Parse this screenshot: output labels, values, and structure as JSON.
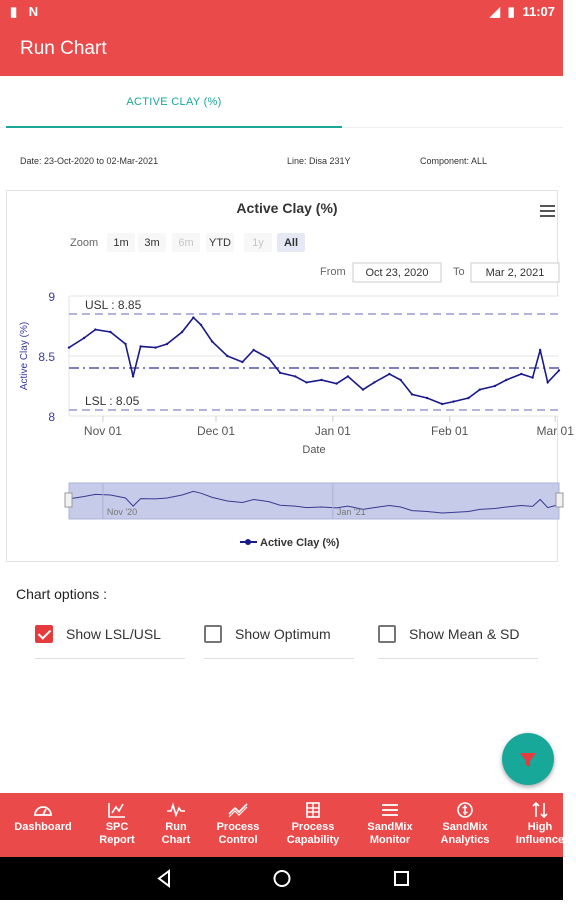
{
  "status": {
    "time": "11:07",
    "left_icons": [
      "sd-card-icon",
      "n-icon"
    ],
    "right_icons": [
      "signal-icon",
      "battery-icon"
    ]
  },
  "app": {
    "title": "Run Chart"
  },
  "tabs": [
    {
      "label": "ACTIVE CLAY (%)",
      "selected": true
    }
  ],
  "info": {
    "date": "Date: 23-Oct-2020 to 02-Mar-2021",
    "line": "Line: Disa 231Y",
    "component": "Component: ALL"
  },
  "chart": {
    "menu_icon": "hamburger-menu-icon",
    "zoom_label": "Zoom",
    "zoom_buttons": [
      {
        "label": "1m",
        "enabled": true
      },
      {
        "label": "3m",
        "enabled": true
      },
      {
        "label": "6m",
        "enabled": false
      },
      {
        "label": "YTD",
        "enabled": true
      },
      {
        "label": "1y",
        "enabled": false
      },
      {
        "label": "All",
        "enabled": true,
        "active": true
      }
    ],
    "from_label": "From",
    "from_value": "Oct 23, 2020",
    "to_label": "To",
    "to_value": "Mar 2, 2021",
    "navigator_labels": [
      "Nov '20",
      "Jan '21"
    ],
    "colors": {
      "series": "#1a1a8c",
      "limits": "#9a9ad6",
      "navigator": "#c5cbe8"
    }
  },
  "chart_data": {
    "type": "line",
    "title": "Active Clay (%)",
    "xlabel": "Date",
    "ylabel": "Active Clay (%)",
    "ylim": [
      8,
      9
    ],
    "yticks": [
      "8",
      "8.5",
      "9"
    ],
    "xticks": [
      "Nov 01",
      "Dec 01",
      "Jan 01",
      "Feb 01",
      "Mar 01"
    ],
    "x_range": [
      "2020-10-23",
      "2021-03-02"
    ],
    "series": [
      {
        "name": "Active Clay (%)",
        "x": [
          "2020-10-23",
          "2020-10-27",
          "2020-10-30",
          "2020-11-03",
          "2020-11-07",
          "2020-11-09",
          "2020-11-11",
          "2020-11-15",
          "2020-11-18",
          "2020-11-22",
          "2020-11-25",
          "2020-11-27",
          "2020-11-30",
          "2020-12-04",
          "2020-12-08",
          "2020-12-11",
          "2020-12-15",
          "2020-12-18",
          "2020-12-22",
          "2020-12-25",
          "2020-12-29",
          "2021-01-02",
          "2021-01-05",
          "2021-01-09",
          "2021-01-12",
          "2021-01-16",
          "2021-01-19",
          "2021-01-22",
          "2021-01-26",
          "2021-01-30",
          "2021-02-02",
          "2021-02-06",
          "2021-02-09",
          "2021-02-13",
          "2021-02-16",
          "2021-02-20",
          "2021-02-23",
          "2021-02-25",
          "2021-02-27",
          "2021-03-02"
        ],
        "values": [
          8.57,
          8.65,
          8.72,
          8.7,
          8.6,
          8.33,
          8.58,
          8.57,
          8.6,
          8.7,
          8.82,
          8.76,
          8.62,
          8.5,
          8.45,
          8.55,
          8.48,
          8.36,
          8.33,
          8.28,
          8.3,
          8.27,
          8.33,
          8.22,
          8.28,
          8.35,
          8.3,
          8.18,
          8.15,
          8.1,
          8.12,
          8.15,
          8.22,
          8.25,
          8.3,
          8.35,
          8.32,
          8.55,
          8.28,
          8.38
        ]
      }
    ],
    "lines": [
      {
        "label": "USL : 8.85",
        "value": 8.85
      },
      {
        "label": "LSL : 8.05",
        "value": 8.05
      },
      {
        "label": "",
        "value": 8.4
      }
    ],
    "legend": "bottom",
    "legend_label": "Active Clay (%)"
  },
  "options": {
    "title": "Chart options :",
    "items": [
      {
        "label": "Show LSL/USL",
        "checked": true
      },
      {
        "label": "Show Optimum",
        "checked": false
      },
      {
        "label": "Show Mean & SD",
        "checked": false
      }
    ]
  },
  "fab": {
    "icon": "filter-icon"
  },
  "bottom_nav": [
    {
      "label": "Dashboard",
      "icon": "dashboard-icon"
    },
    {
      "label": "SPC\nReport",
      "icon": "spc-report-icon"
    },
    {
      "label": "Run\nChart",
      "icon": "run-chart-icon"
    },
    {
      "label": "Process\nControl",
      "icon": "process-control-icon"
    },
    {
      "label": "Process\nCapability",
      "icon": "process-capability-icon"
    },
    {
      "label": "SandMix\nMonitor",
      "icon": "sandmix-monitor-icon"
    },
    {
      "label": "SandMix\nAnalytics",
      "icon": "sandmix-analytics-icon"
    },
    {
      "label": "High\nInfluence",
      "icon": "high-influence-icon"
    }
  ],
  "system_nav": [
    "back-icon",
    "home-icon",
    "recents-icon"
  ]
}
